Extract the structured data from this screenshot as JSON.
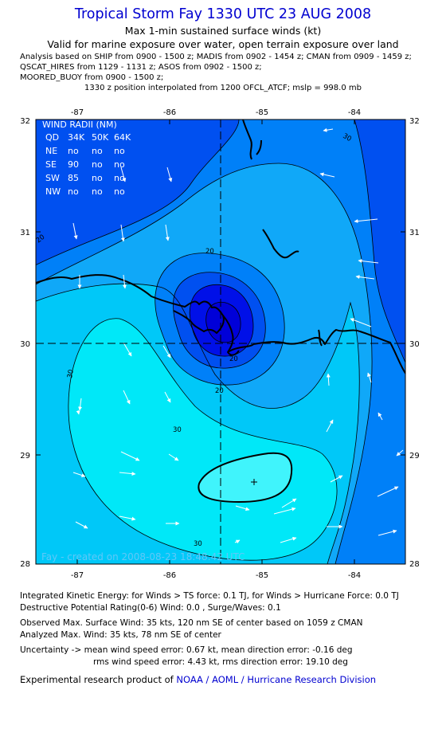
{
  "header": {
    "title": "Tropical Storm Fay 1330 UTC 23 AUG 2008",
    "subtitle": "Max 1-min sustained surface winds (kt)",
    "validity": "Valid for marine exposure over water, open terrain exposure over land",
    "analysis_lines": [
      "Analysis based on  SHIP from 0900 - 1500 z;  MADIS from 0902 - 1454 z;  CMAN from 0909 - 1459 z;",
      "QSCAT_HIRES from 1129 - 1131 z;  ASOS from 0902 - 1500 z;",
      "MOORED_BUOY from 0900 - 1500 z;"
    ],
    "position_note": "1330 z position interpolated from 1200 OFCL_ATCF; mslp = 998.0 mb"
  },
  "map": {
    "lon_ticks": [
      "-87",
      "-86",
      "-85",
      "-84"
    ],
    "lat_ticks": [
      "32",
      "31",
      "30",
      "29",
      "28"
    ],
    "lon_range": [
      -87.5,
      -83.5
    ],
    "lat_range": [
      28,
      32
    ],
    "center": {
      "lon": -85.5,
      "lat": 30
    },
    "contour_labels": [
      "20",
      "20",
      "20",
      "20",
      "30",
      "30",
      "30",
      "30"
    ],
    "watermark": "Fay - created on 2008-08-23 18:48:42 UTC",
    "wind_radii": {
      "title": "WIND RADII (NM)",
      "header": [
        "QD",
        "34K",
        "50K",
        "64K"
      ],
      "rows": [
        [
          "NE",
          "no",
          "no",
          "no"
        ],
        [
          "SE",
          "90",
          "no",
          "no"
        ],
        [
          "SW",
          "85",
          "no",
          "no"
        ],
        [
          "NW",
          "no",
          "no",
          "no"
        ]
      ]
    },
    "colors": {
      "band_lt10": "#0010e8",
      "band_10_15": "#0050f0",
      "band_15_20": "#0080f8",
      "band_20_25": "#10a8f8",
      "band_25_30": "#00c8f8",
      "band_30_35": "#00e8f8",
      "band_gt35": "#40f4fc",
      "contour": "#000000",
      "coast": "#000000",
      "arrows": "#ffffff"
    }
  },
  "footer": {
    "ike": "Integrated Kinetic Energy:  for Winds > TS force: 0.1 TJ,  for Winds > Hurricane Force: 0.0 TJ",
    "dpr": "Destructive Potential Rating(0-6)   Wind: 0.0 , Surge/Waves: 0.1",
    "observed": "Observed Max. Surface Wind: 35 kts, 120 nm SE of center based on 1059 z CMAN",
    "analyzed": "Analyzed Max. Wind: 35 kts, 78 nm SE of center",
    "uncertainty1": "Uncertainty -> mean wind speed error: 0.67 kt,   mean direction error:  -0.16 deg",
    "uncertainty2": "rms wind speed error: 4.43 kt,   rms direction error: 19.10 deg",
    "experimental_prefix": "Experimental research product of ",
    "experimental_link": "NOAA / AOML / Hurricane Research Division"
  }
}
